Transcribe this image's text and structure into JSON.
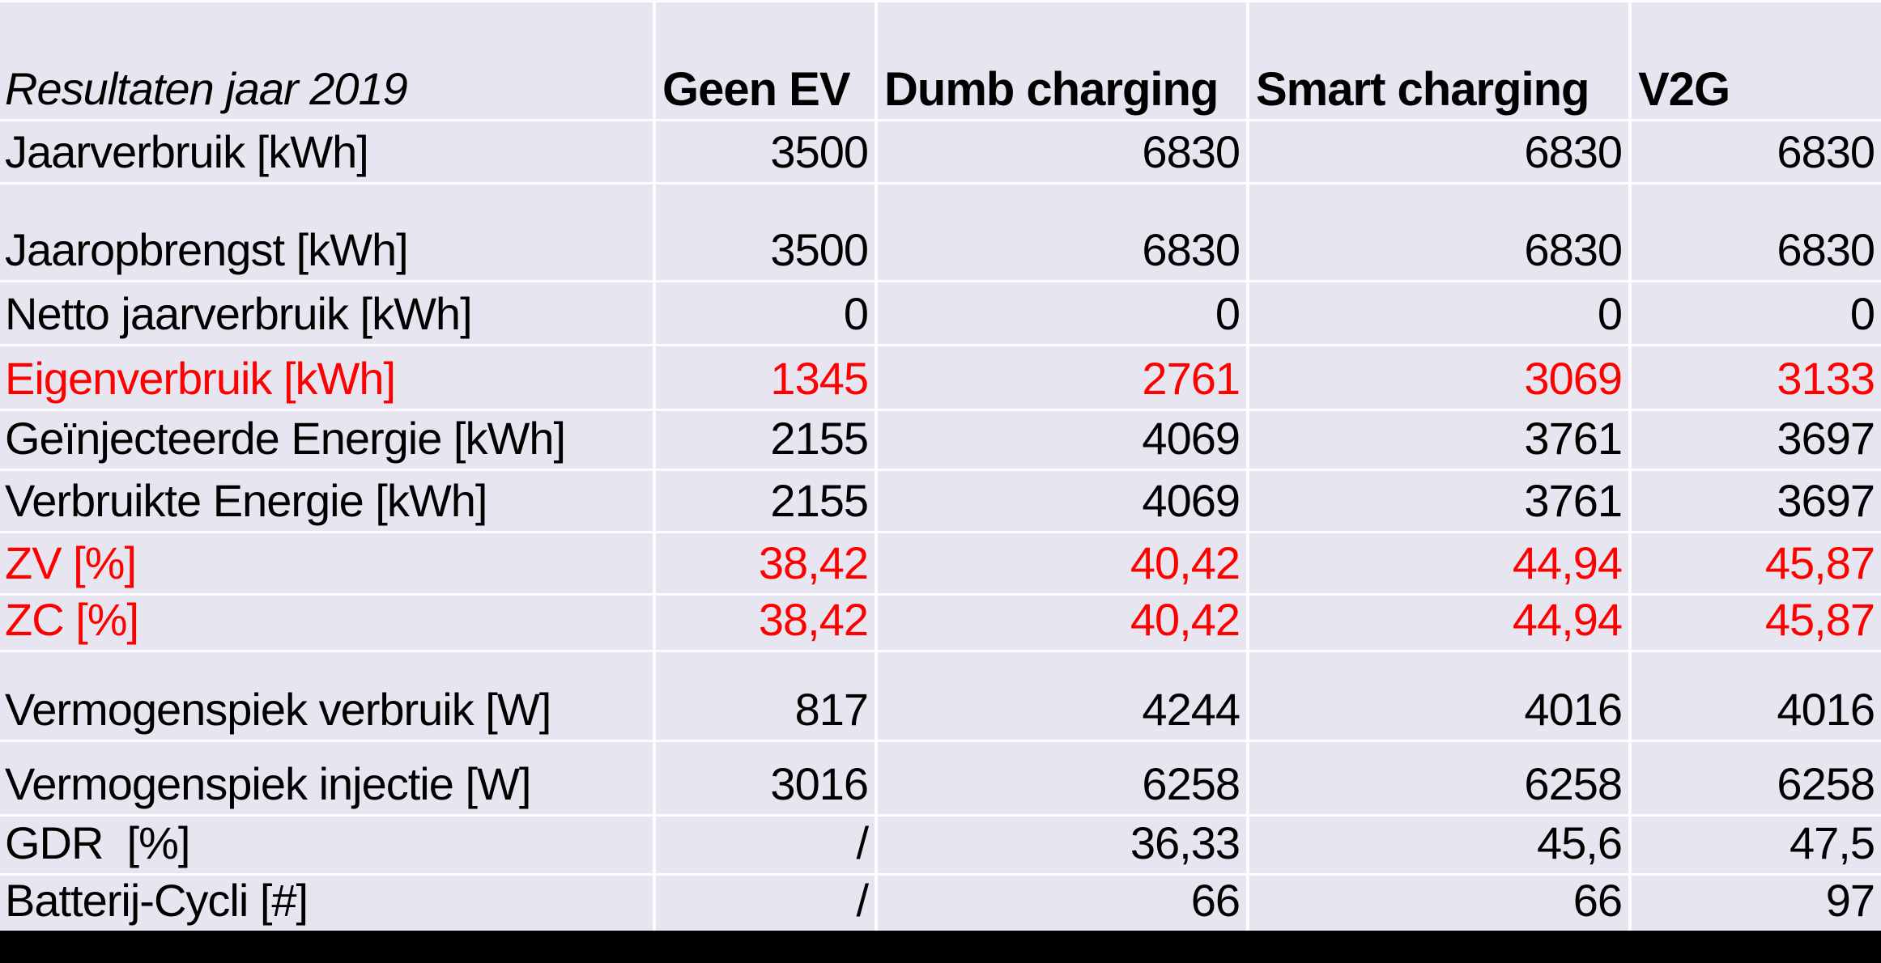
{
  "chart_data": {
    "type": "table",
    "title": "Resultaten jaar 2019",
    "columns": [
      "Geen EV",
      "Dumb charging",
      "Smart charging",
      "V2G"
    ],
    "rows": [
      {
        "label": "Jaarverbruik [kWh]",
        "values": [
          "3500",
          "6830",
          "6830",
          "6830"
        ],
        "red": false
      },
      {
        "label": "Jaaropbrengst [kWh]",
        "values": [
          "3500",
          "6830",
          "6830",
          "6830"
        ],
        "red": false
      },
      {
        "label": "Netto jaarverbruik [kWh]",
        "values": [
          "0",
          "0",
          "0",
          "0"
        ],
        "red": false
      },
      {
        "label": "Eigenverbruik [kWh]",
        "values": [
          "1345",
          "2761",
          "3069",
          "3133"
        ],
        "red": true
      },
      {
        "label": "Geïnjecteerde Energie [kWh]",
        "values": [
          "2155",
          "4069",
          "3761",
          "3697"
        ],
        "red": false
      },
      {
        "label": "Verbruikte Energie [kWh]",
        "values": [
          "2155",
          "4069",
          "3761",
          "3697"
        ],
        "red": false
      },
      {
        "label": "ZV [%]",
        "values": [
          "38,42",
          "40,42",
          "44,94",
          "45,87"
        ],
        "red": true
      },
      {
        "label": "ZC [%]",
        "values": [
          "38,42",
          "40,42",
          "44,94",
          "45,87"
        ],
        "red": true
      },
      {
        "label": "Vermogenspiek verbruik [W]",
        "values": [
          "817",
          "4244",
          "4016",
          "4016"
        ],
        "red": false
      },
      {
        "label": "Vermogenspiek injectie [W]",
        "values": [
          "3016",
          "6258",
          "6258",
          "6258"
        ],
        "red": false
      },
      {
        "label": "GDR  [%]",
        "values": [
          "/",
          "36,33",
          "45,6",
          "47,5"
        ],
        "red": false
      },
      {
        "label": "Batterij-Cycli [#]",
        "values": [
          "/",
          "66",
          "66",
          "97"
        ],
        "red": false
      }
    ],
    "layout_hints": {
      "grid": true,
      "value_alignment": "right",
      "label_alignment": "left",
      "vertical_alignment": "bottom"
    }
  },
  "colors": {
    "cell_background": "#E7E6F0",
    "gridline": "#FDFDFF",
    "text": "#000000",
    "highlight_red": "#FF0000",
    "letterbox": "#000000"
  }
}
